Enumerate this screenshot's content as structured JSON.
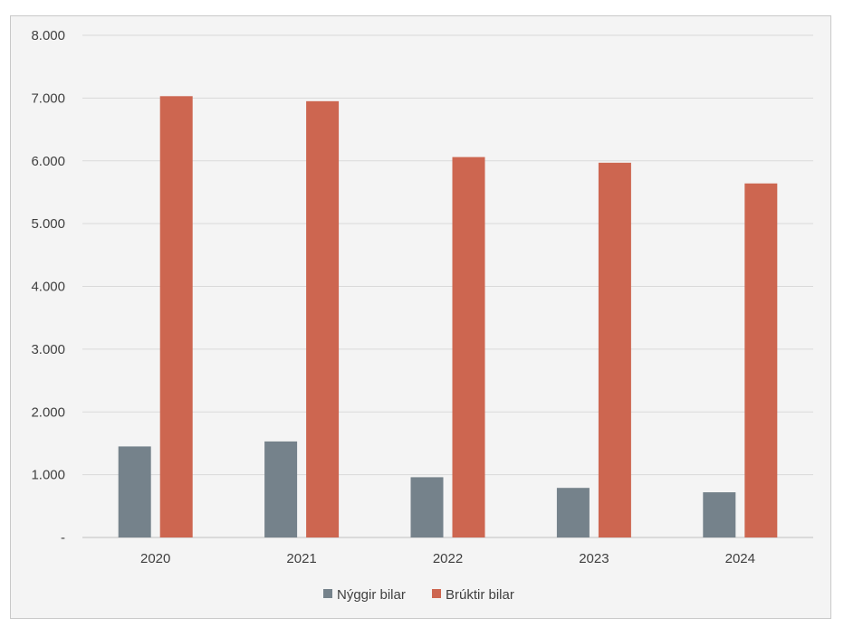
{
  "chart_data": {
    "type": "bar",
    "categories": [
      "2020",
      "2021",
      "2022",
      "2023",
      "2024"
    ],
    "series": [
      {
        "name": "Nýggir bilar",
        "color": "#75828b",
        "values": [
          1450,
          1530,
          960,
          790,
          720
        ]
      },
      {
        "name": "Brúktir bilar",
        "color": "#cd6650",
        "values": [
          7030,
          6950,
          6060,
          5970,
          5640
        ]
      }
    ],
    "ylim": [
      0,
      8000
    ],
    "yticks": [
      {
        "value": 0,
        "label": "-"
      },
      {
        "value": 1000,
        "label": "1.000"
      },
      {
        "value": 2000,
        "label": "2.000"
      },
      {
        "value": 3000,
        "label": "3.000"
      },
      {
        "value": 4000,
        "label": "4.000"
      },
      {
        "value": 5000,
        "label": "5.000"
      },
      {
        "value": 6000,
        "label": "6.000"
      },
      {
        "value": 7000,
        "label": "7.000"
      },
      {
        "value": 8000,
        "label": "8.000"
      }
    ],
    "grid": true,
    "legend_position": "bottom",
    "title": "",
    "xlabel": "",
    "ylabel": ""
  }
}
